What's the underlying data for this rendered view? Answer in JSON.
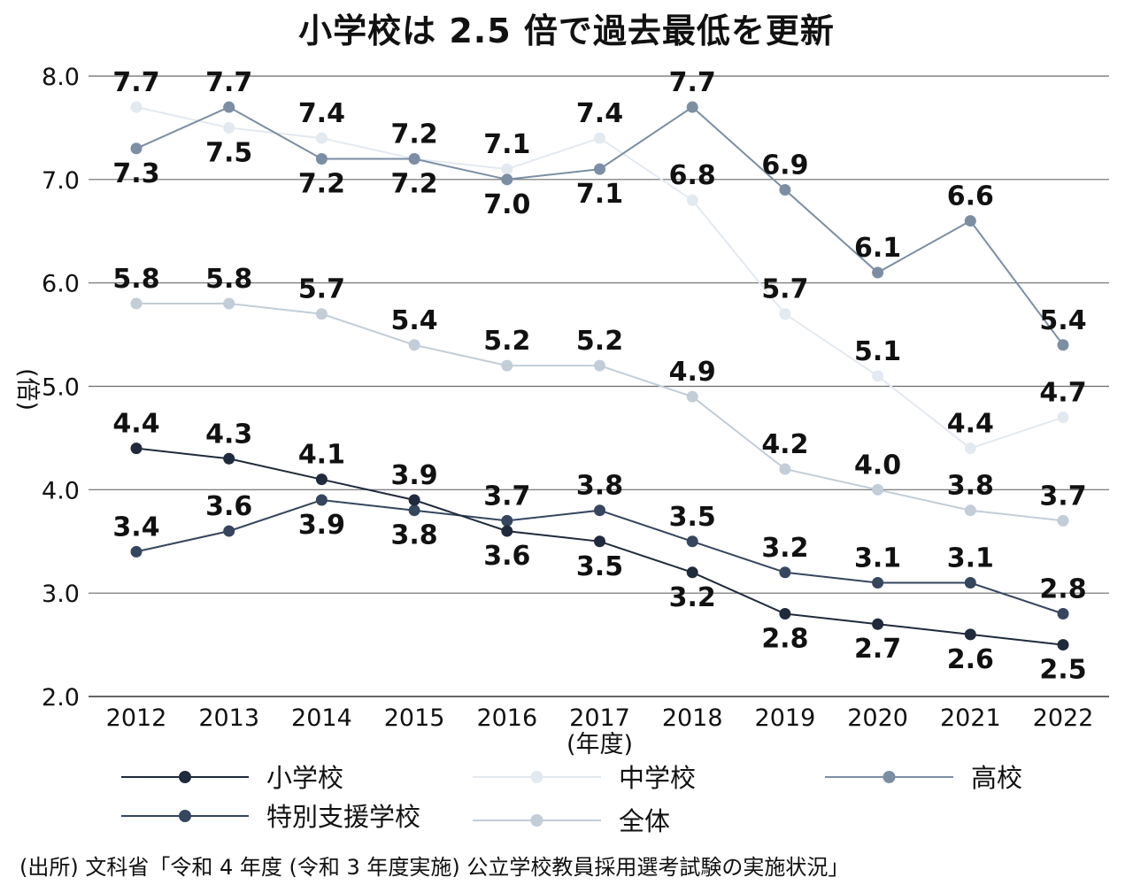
{
  "chart_data": {
    "type": "line",
    "title": "小学校は 2.5 倍で過去最低を更新",
    "ylabel": "(倍)",
    "xlabel": "(年度)",
    "ylim": [
      2.0,
      8.0
    ],
    "yticks": [
      "2.0",
      "3.0",
      "4.0",
      "5.0",
      "6.0",
      "7.0",
      "8.0"
    ],
    "categories": [
      "2012",
      "2013",
      "2014",
      "2015",
      "2016",
      "2017",
      "2018",
      "2019",
      "2020",
      "2021",
      "2022"
    ],
    "grid": "horizontal",
    "legend_position": "bottom",
    "series": [
      {
        "name": "小学校",
        "color": "#1f2a3c",
        "values": [
          4.4,
          4.3,
          4.1,
          3.9,
          3.6,
          3.5,
          3.2,
          2.8,
          2.7,
          2.6,
          2.5
        ],
        "labels": [
          "4.4",
          "4.3",
          "4.1",
          "3.9",
          "3.6",
          "3.5",
          "3.2",
          "2.8",
          "2.7",
          "2.6",
          "2.5"
        ],
        "label_side": [
          "above",
          "above",
          "above",
          "above",
          "below",
          "below",
          "below",
          "below",
          "below",
          "below",
          "below"
        ]
      },
      {
        "name": "中学校",
        "color": "#e3e9f0",
        "values": [
          7.7,
          7.5,
          7.4,
          7.2,
          7.1,
          7.4,
          6.8,
          5.7,
          5.1,
          4.4,
          4.7
        ],
        "labels": [
          "7.7",
          "7.5",
          "7.4",
          "7.2",
          "7.1",
          "7.4",
          "6.8",
          "5.7",
          "5.1",
          "4.4",
          "4.7"
        ],
        "label_side": [
          "above",
          "below",
          "above",
          "above",
          "above",
          "above",
          "above",
          "above",
          "above",
          "above",
          "above"
        ]
      },
      {
        "name": "高校",
        "color": "#7b8ea3",
        "values": [
          7.3,
          7.7,
          7.2,
          7.2,
          7.0,
          7.1,
          7.7,
          6.9,
          6.1,
          6.6,
          5.4
        ],
        "labels": [
          "7.3",
          "7.7",
          "7.2",
          "7.2",
          "7.0",
          "7.1",
          "7.7",
          "6.9",
          "6.1",
          "6.6",
          "5.4"
        ],
        "label_side": [
          "below",
          "above",
          "below",
          "below",
          "below",
          "below",
          "above",
          "above",
          "above",
          "above",
          "above"
        ]
      },
      {
        "name": "特別支援学校",
        "color": "#35465e",
        "values": [
          3.4,
          3.6,
          3.9,
          3.8,
          3.7,
          3.8,
          3.5,
          3.2,
          3.1,
          3.1,
          2.8
        ],
        "labels": [
          "3.4",
          "3.6",
          "3.9",
          "3.8",
          "3.7",
          "3.8",
          "3.5",
          "3.2",
          "3.1",
          "3.1",
          "2.8"
        ],
        "label_side": [
          "above",
          "above",
          "below",
          "below",
          "above",
          "above",
          "above",
          "above",
          "above",
          "above",
          "above"
        ]
      },
      {
        "name": "全体",
        "color": "#c2cdd8",
        "values": [
          5.8,
          5.8,
          5.7,
          5.4,
          5.2,
          5.2,
          4.9,
          4.2,
          4.0,
          3.8,
          3.7
        ],
        "labels": [
          "5.8",
          "5.8",
          "5.7",
          "5.4",
          "5.2",
          "5.2",
          "4.9",
          "4.2",
          "4.0",
          "3.8",
          "3.7"
        ],
        "label_side": [
          "above",
          "above",
          "above",
          "above",
          "above",
          "above",
          "above",
          "above",
          "above",
          "above",
          "above"
        ]
      }
    ]
  },
  "source_note": "(出所) 文科省「令和 4 年度 (令和 3 年度実施) 公立学校教員採用選考試験の実施状況」"
}
